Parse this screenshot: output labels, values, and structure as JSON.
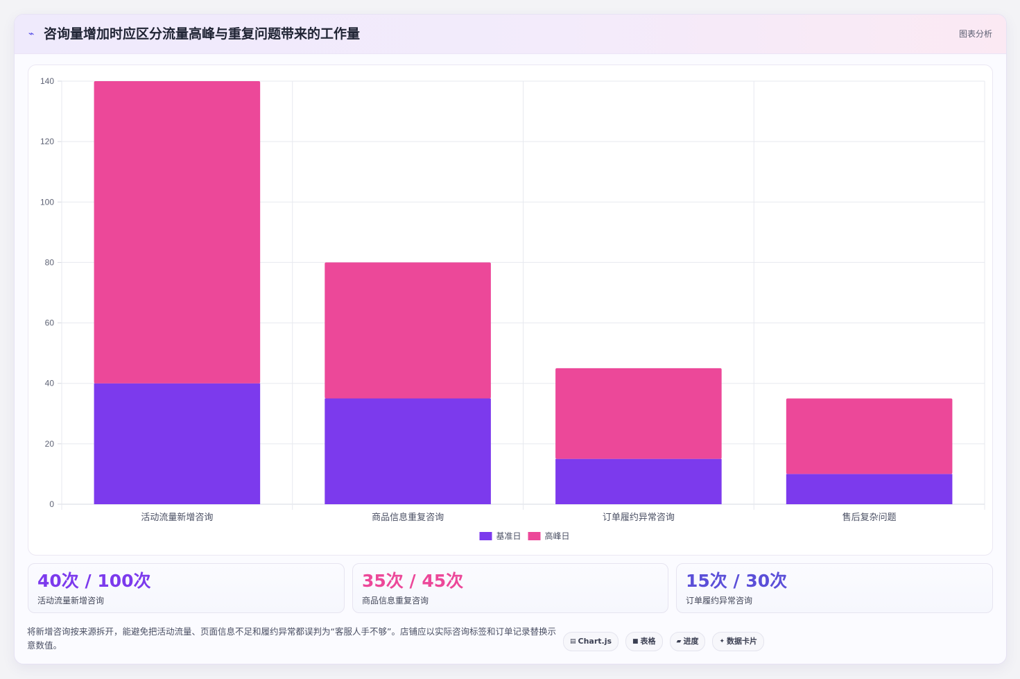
{
  "header": {
    "icon": "trend-line-icon",
    "title": "咨询量增加时应区分流量高峰与重复问题带来的工作量",
    "tag": "图表分析"
  },
  "colors": {
    "baseline": "#7c3aed",
    "peak": "#ec4899",
    "stat_1": "#7c3aed",
    "stat_2": "#ec4899",
    "stat_3": "#5b4fd8"
  },
  "chart_data": {
    "type": "bar",
    "stacked": true,
    "categories": [
      "活动流量新增咨询",
      "商品信息重复咨询",
      "订单履约异常咨询",
      "售后复杂问题"
    ],
    "series": [
      {
        "name": "基准日",
        "values": [
          40,
          35,
          15,
          10
        ]
      },
      {
        "name": "高峰日",
        "values": [
          100,
          45,
          30,
          25
        ]
      }
    ],
    "ylim": [
      0,
      140
    ],
    "yticks": [
      0,
      20,
      40,
      60,
      80,
      100,
      120,
      140
    ],
    "grid": true,
    "legend_position": "bottom"
  },
  "stats": [
    {
      "value": "40次 / 100次",
      "label": "活动流量新增咨询"
    },
    {
      "value": "35次 / 45次",
      "label": "商品信息重复咨询"
    },
    {
      "value": "15次 / 30次",
      "label": "订单履约异常咨询"
    }
  ],
  "footer": {
    "note": "将新增咨询按来源拆开，能避免把活动流量、页面信息不足和履约异常都误判为“客服人手不够”。店铺应以实际咨询标签和订单记录替换示意数值。",
    "chips": [
      {
        "icon": "chart-icon",
        "label": "Chart.js"
      },
      {
        "icon": "table-icon",
        "label": "表格"
      },
      {
        "icon": "progress-icon",
        "label": "进度"
      },
      {
        "icon": "sparkle-icon",
        "label": "数据卡片"
      }
    ]
  }
}
